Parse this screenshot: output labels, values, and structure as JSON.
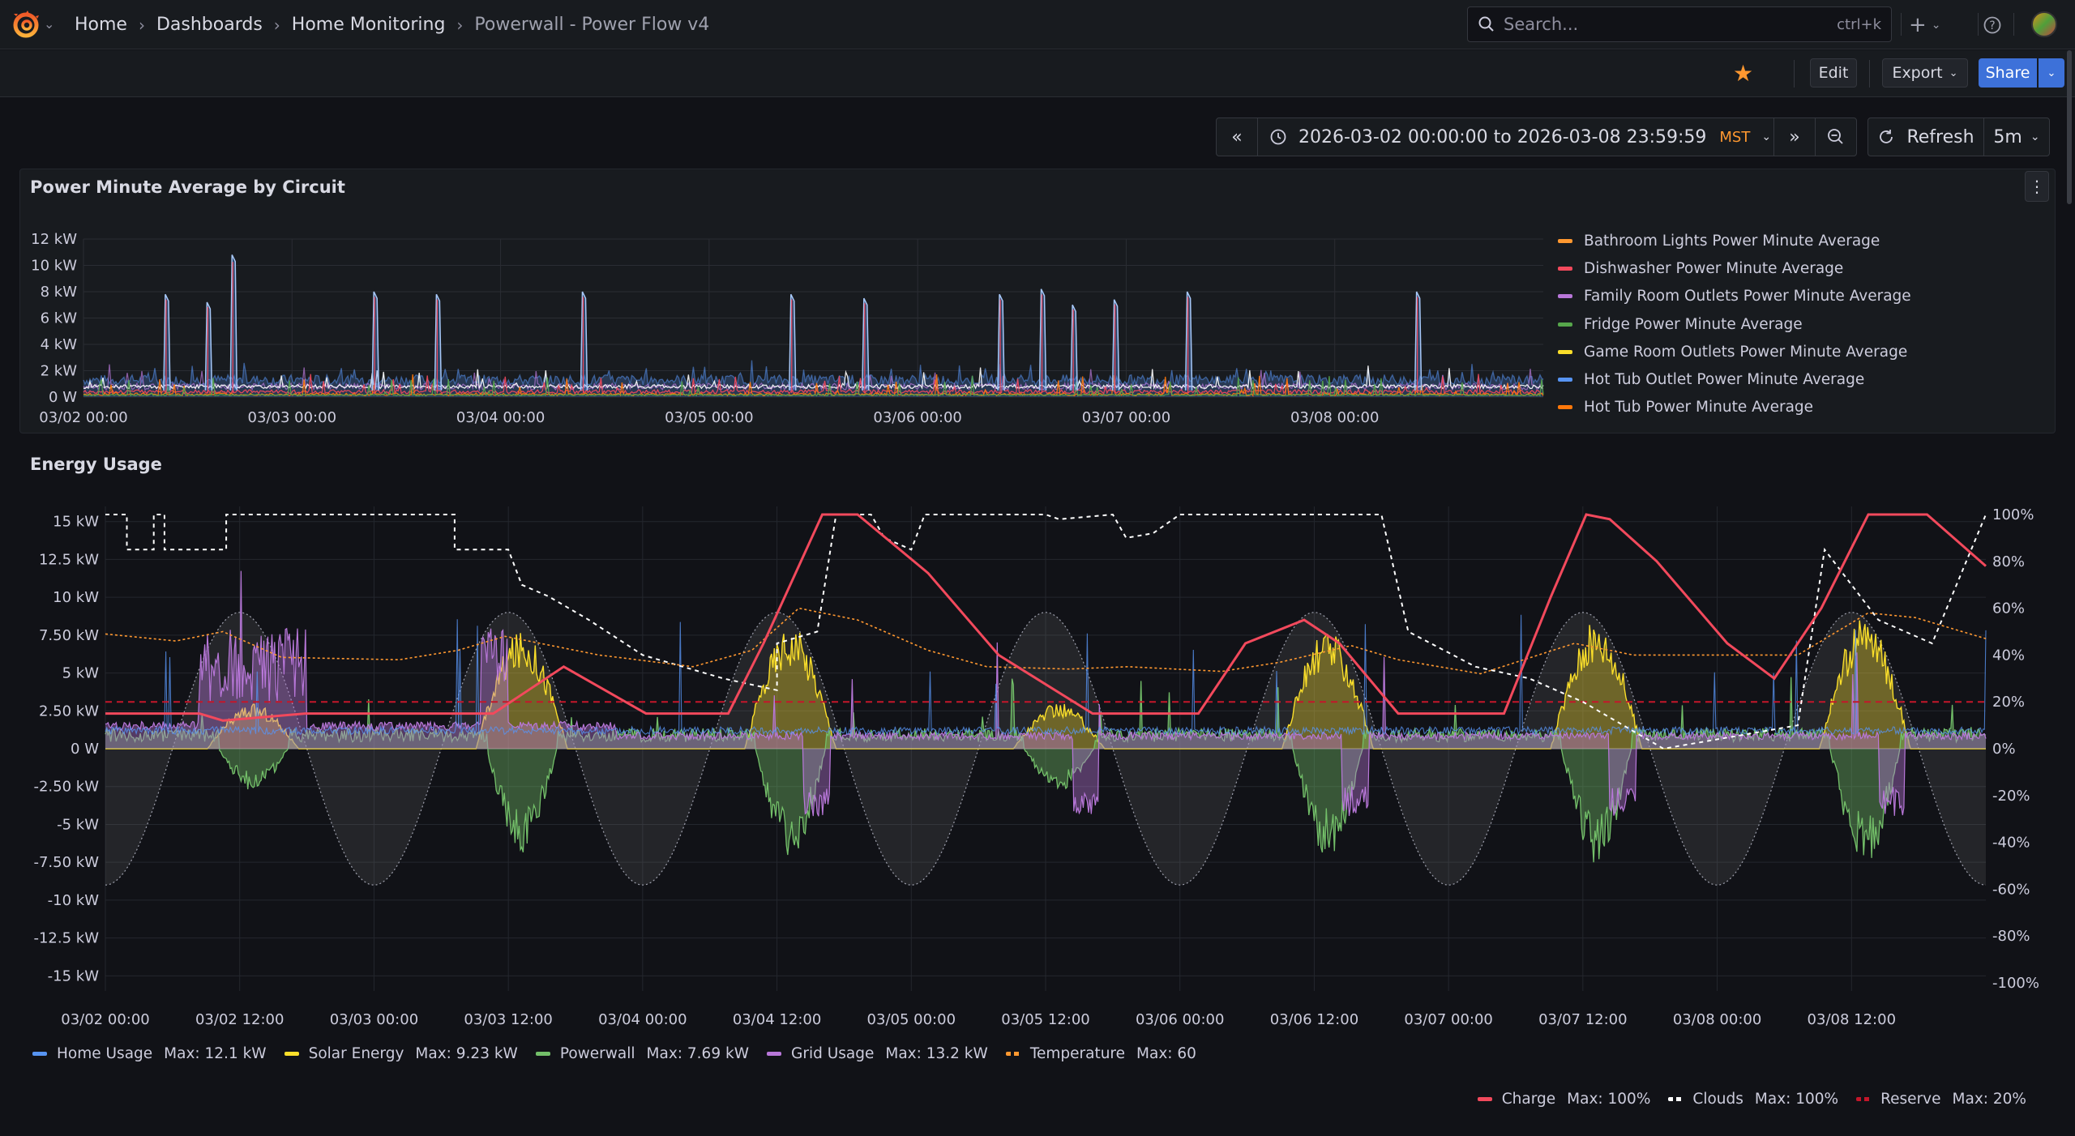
{
  "topbar": {
    "breadcrumbs": [
      "Home",
      "Dashboards",
      "Home Monitoring"
    ],
    "current": "Powerwall - Power Flow v4",
    "search_placeholder": "Search...",
    "search_shortcut": "ctrl+k"
  },
  "toolbar": {
    "edit_label": "Edit",
    "export_label": "Export",
    "share_label": "Share"
  },
  "timepicker": {
    "range": "2026-03-02 00:00:00 to 2026-03-08 23:59:59",
    "timezone": "MST",
    "refresh_label": "Refresh",
    "refresh_interval": "5m"
  },
  "panels": {
    "circuit_title": "Power Minute Average by Circuit",
    "energy_title": "Energy Usage"
  },
  "colors": {
    "bathroom": "#ff9830",
    "dishwasher": "#f2495c",
    "family": "#b877d9",
    "fridge": "#56a64b",
    "gameroom": "#fade2a",
    "hottub_outlet": "#5794f2",
    "hottub": "#ff780a",
    "home": "#5794f2",
    "solar": "#fade2a",
    "powerwall": "#73bf69",
    "grid": "#b877d9",
    "temperature": "#ff9830",
    "charge": "#f2495c",
    "clouds": "#ffffff",
    "reserve": "#c4162a"
  },
  "chart_data": [
    {
      "type": "line",
      "title": "Power Minute Average by Circuit",
      "yticks": [
        "12 kW",
        "10 kW",
        "8 kW",
        "6 kW",
        "4 kW",
        "2 kW",
        "0 W"
      ],
      "xticks": [
        "03/02 00:00",
        "03/03 00:00",
        "03/04 00:00",
        "03/05 00:00",
        "03/06 00:00",
        "03/07 00:00",
        "03/08 00:00"
      ],
      "ylim": [
        0,
        12
      ],
      "legend_placement": "right",
      "series": [
        {
          "name": "Bathroom Lights Power Minute Average",
          "color": "#ff9830"
        },
        {
          "name": "Dishwasher Power Minute Average",
          "color": "#f2495c"
        },
        {
          "name": "Family Room Outlets Power Minute Average",
          "color": "#b877d9"
        },
        {
          "name": "Fridge Power Minute Average",
          "color": "#56a64b"
        },
        {
          "name": "Game Room Outlets Power Minute Average",
          "color": "#fade2a"
        },
        {
          "name": "Hot Tub Outlet Power Minute Average",
          "color": "#5794f2"
        },
        {
          "name": "Hot Tub Power Minute Average",
          "color": "#ff780a"
        }
      ],
      "spikes_kw": [
        {
          "t": 0.4,
          "v": 7.8
        },
        {
          "t": 0.6,
          "v": 7.2
        },
        {
          "t": 0.72,
          "v": 10.8
        },
        {
          "t": 1.4,
          "v": 8.0
        },
        {
          "t": 1.7,
          "v": 7.8
        },
        {
          "t": 2.4,
          "v": 8.0
        },
        {
          "t": 3.4,
          "v": 7.8
        },
        {
          "t": 3.75,
          "v": 7.5
        },
        {
          "t": 4.4,
          "v": 7.8
        },
        {
          "t": 4.6,
          "v": 8.2
        },
        {
          "t": 4.75,
          "v": 7.0
        },
        {
          "t": 4.95,
          "v": 7.4
        },
        {
          "t": 5.3,
          "v": 8.0
        },
        {
          "t": 6.4,
          "v": 8.0
        }
      ]
    },
    {
      "type": "area",
      "title": "Energy Usage",
      "yticks": [
        "15 kW",
        "12.5 kW",
        "10 kW",
        "7.50 kW",
        "5 kW",
        "2.50 kW",
        "0 W",
        "-2.50 kW",
        "-5 kW",
        "-7.50 kW",
        "-10 kW",
        "-12.5 kW",
        "-15 kW"
      ],
      "y2ticks": [
        "100%",
        "80%",
        "60%",
        "40%",
        "20%",
        "0%",
        "-20%",
        "-40%",
        "-60%",
        "-80%",
        "-100%"
      ],
      "xticks": [
        "03/02 00:00",
        "03/02 12:00",
        "03/03 00:00",
        "03/03 12:00",
        "03/04 00:00",
        "03/04 12:00",
        "03/05 00:00",
        "03/05 12:00",
        "03/06 00:00",
        "03/06 12:00",
        "03/07 00:00",
        "03/07 12:00",
        "03/08 00:00",
        "03/08 12:00"
      ],
      "ylim": [
        -16,
        16
      ],
      "y2lim": [
        -100,
        100
      ],
      "legend_placement": "bottom",
      "series": [
        {
          "name": "Home Usage",
          "max": "Max: 12.1 kW",
          "color": "#5794f2"
        },
        {
          "name": "Solar Energy",
          "max": "Max: 9.23 kW",
          "color": "#fade2a"
        },
        {
          "name": "Powerwall",
          "max": "Max: 7.69 kW",
          "color": "#73bf69"
        },
        {
          "name": "Grid Usage",
          "max": "Max: 13.2 kW",
          "color": "#b877d9"
        },
        {
          "name": "Temperature",
          "max": "Max: 60",
          "color": "#ff9830"
        },
        {
          "name": "Charge",
          "max": "Max: 100%",
          "color": "#f2495c"
        },
        {
          "name": "Clouds",
          "max": "Max: 100%",
          "color": "#ffffff"
        },
        {
          "name": "Reserve",
          "max": "Max: 20%",
          "color": "#c4162a"
        }
      ],
      "reserve_pct": 20,
      "charge_pct": [
        [
          0,
          15
        ],
        [
          0.4,
          15
        ],
        [
          0.5,
          12
        ],
        [
          0.85,
          15
        ],
        [
          1.5,
          15
        ],
        [
          1.65,
          15
        ],
        [
          1.95,
          35
        ],
        [
          2.3,
          15
        ],
        [
          2.65,
          15
        ],
        [
          2.8,
          45
        ],
        [
          3.05,
          100
        ],
        [
          3.2,
          100
        ],
        [
          3.5,
          75
        ],
        [
          3.8,
          40
        ],
        [
          4.2,
          15
        ],
        [
          4.65,
          15
        ],
        [
          4.85,
          45
        ],
        [
          5.1,
          55
        ],
        [
          5.25,
          45
        ],
        [
          5.5,
          15
        ],
        [
          5.95,
          15
        ],
        [
          6.15,
          65
        ],
        [
          6.3,
          100
        ],
        [
          6.4,
          98
        ],
        [
          6.6,
          80
        ],
        [
          6.9,
          45
        ],
        [
          7.1,
          30
        ],
        [
          7.3,
          60
        ],
        [
          7.5,
          100
        ],
        [
          7.75,
          100
        ],
        [
          8.0,
          78
        ]
      ],
      "temperature_pct": [
        [
          0,
          49
        ],
        [
          0.3,
          46
        ],
        [
          0.5,
          50
        ],
        [
          0.75,
          39
        ],
        [
          1.25,
          38
        ],
        [
          1.5,
          42
        ],
        [
          1.7,
          48
        ],
        [
          1.85,
          45
        ],
        [
          2.1,
          40
        ],
        [
          2.5,
          35
        ],
        [
          2.75,
          42
        ],
        [
          2.95,
          60
        ],
        [
          3.2,
          55
        ],
        [
          3.5,
          42
        ],
        [
          3.75,
          35
        ],
        [
          4.1,
          34
        ],
        [
          4.35,
          35
        ],
        [
          4.75,
          33
        ],
        [
          5.0,
          37
        ],
        [
          5.3,
          44
        ],
        [
          5.5,
          38
        ],
        [
          5.85,
          32
        ],
        [
          6.25,
          45
        ],
        [
          6.5,
          40
        ],
        [
          6.85,
          40
        ],
        [
          7.2,
          40
        ],
        [
          7.5,
          58
        ],
        [
          7.7,
          56
        ],
        [
          8.0,
          47
        ]
      ]
    }
  ]
}
